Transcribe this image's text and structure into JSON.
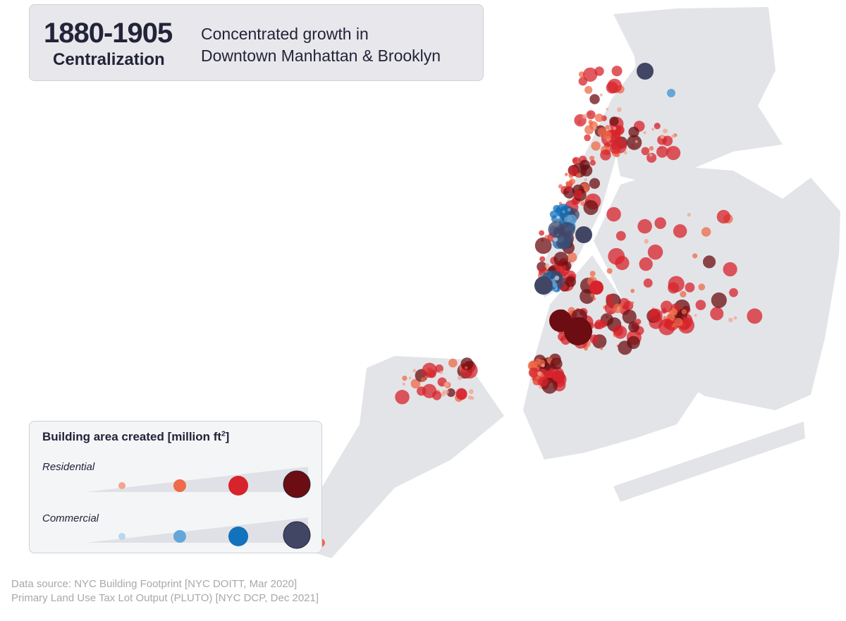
{
  "header": {
    "years": "1880-1905",
    "era": "Centralization",
    "description_line1": "Concentrated growth in",
    "description_line2": "Downtown Manhattan & Brooklyn"
  },
  "legend": {
    "title": "Building area created [million ft",
    "title_sup": "2",
    "title_end": "]",
    "categories": [
      {
        "label": "Residential",
        "colors": [
          "#f2a58f",
          "#ee6a48",
          "#d7232b",
          "#6b0d12"
        ]
      },
      {
        "label": "Commercial",
        "colors": [
          "#bcd6ec",
          "#64a6d8",
          "#1272bb",
          "#424665"
        ]
      }
    ]
  },
  "source": {
    "line1": "Data source: NYC Building Footprint [NYC DOITT, Mar 2020]",
    "line2": "Primary Land Use Tax Lot Output (PLUTO) [NYC DCP, Dec 2021]"
  },
  "colors": {
    "land": "#e3e4e8",
    "water": "#ffffff",
    "text": "#23233a"
  }
}
